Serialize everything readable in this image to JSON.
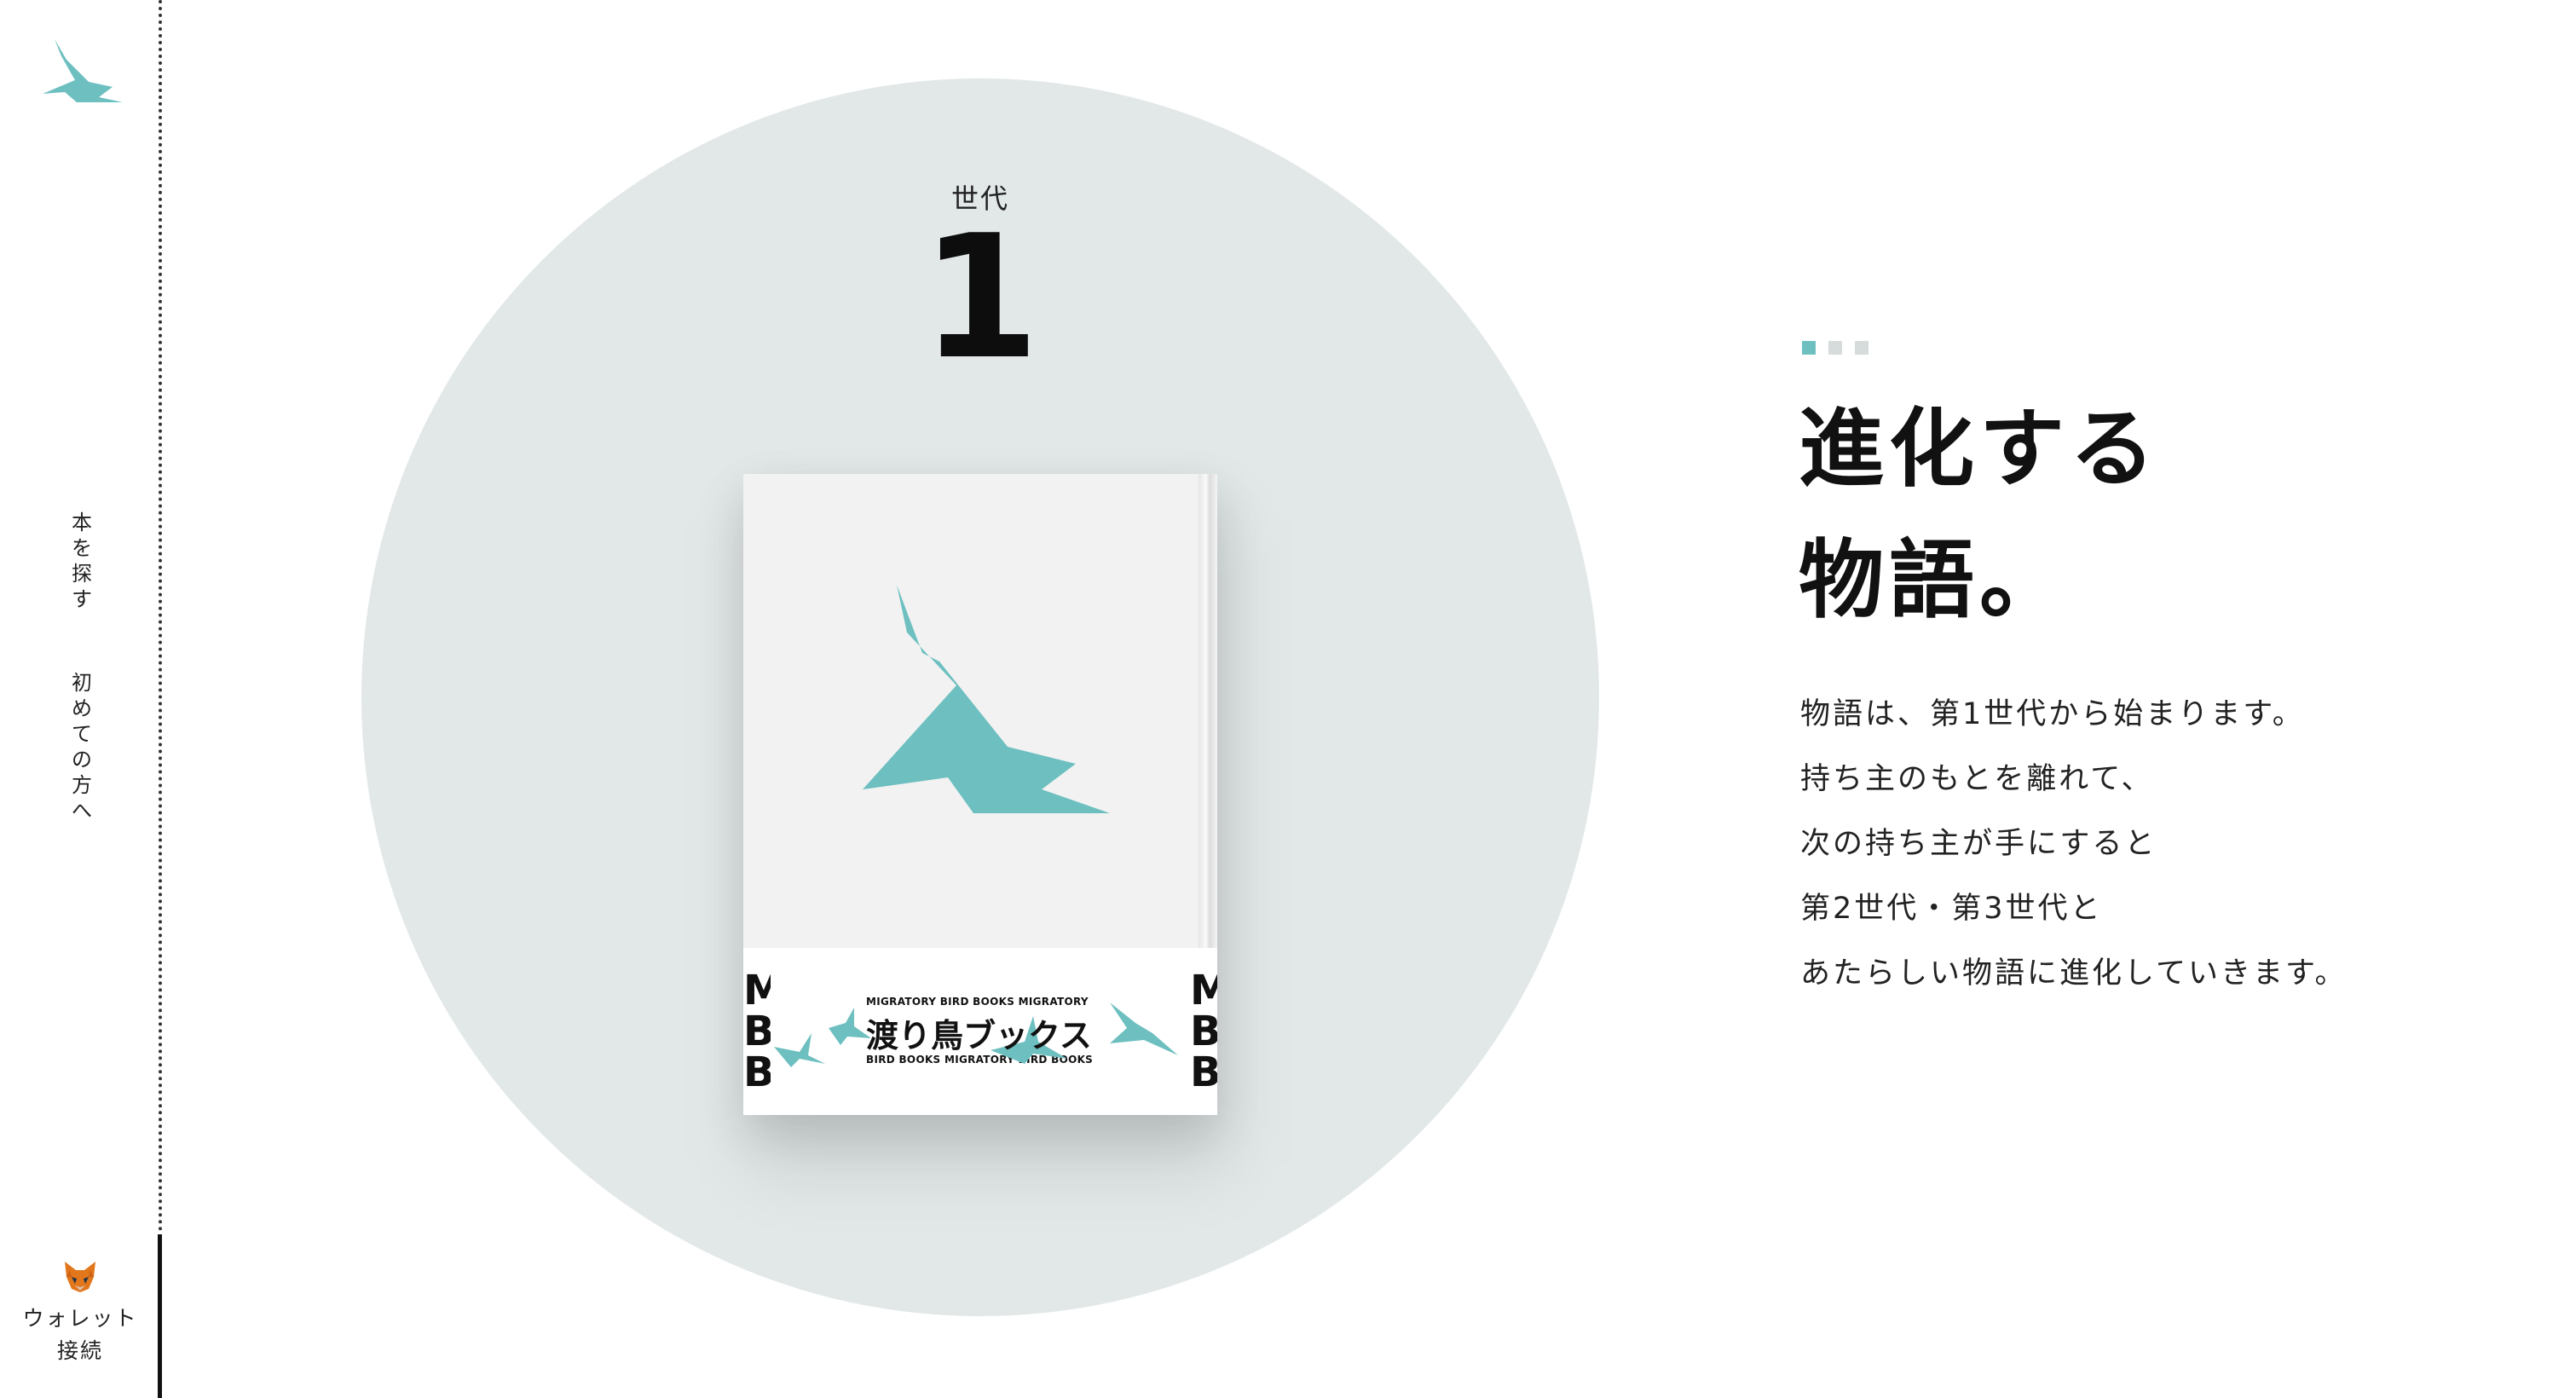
{
  "colors": {
    "accent": "#6dbfc0",
    "circle": "#e2e8e8",
    "dot_active": "#6dbfc0",
    "dot_inactive": "#d6dcdc"
  },
  "sidebar": {
    "logo_icon": "bird-logo-icon",
    "nav": [
      {
        "label": "本を探す",
        "chars": [
          "本",
          "を",
          "探",
          "す"
        ]
      },
      {
        "label": "初めての方へ",
        "chars": [
          "初",
          "め",
          "て",
          "の",
          "方",
          "へ"
        ]
      }
    ],
    "wallet": {
      "icon": "metamask-fox-icon",
      "line1": "ウォレット",
      "line2": "接続"
    }
  },
  "hero": {
    "generation_label": "世代",
    "generation_number": "1"
  },
  "book": {
    "band_top_text": "MIGRATORY BIRD BOOKS MIGRATORY",
    "band_title": "渡り鳥ブックス",
    "band_bottom_text": "BIRD BOOKS MIGRATORY BIRD BOOKS",
    "band_side_left": [
      "M",
      "B",
      "B"
    ],
    "band_side_right": [
      "M",
      "B",
      "B"
    ]
  },
  "content": {
    "slide_indicator": {
      "count": 3,
      "active": 0
    },
    "headline": [
      "進化する",
      "物語。"
    ],
    "body_lines": [
      "物語は、第1世代から始まります。",
      "持ち主のもとを離れて、",
      "次の持ち主が手にすると",
      "第2世代・第3世代と",
      "あたらしい物語に進化していきます。"
    ]
  }
}
